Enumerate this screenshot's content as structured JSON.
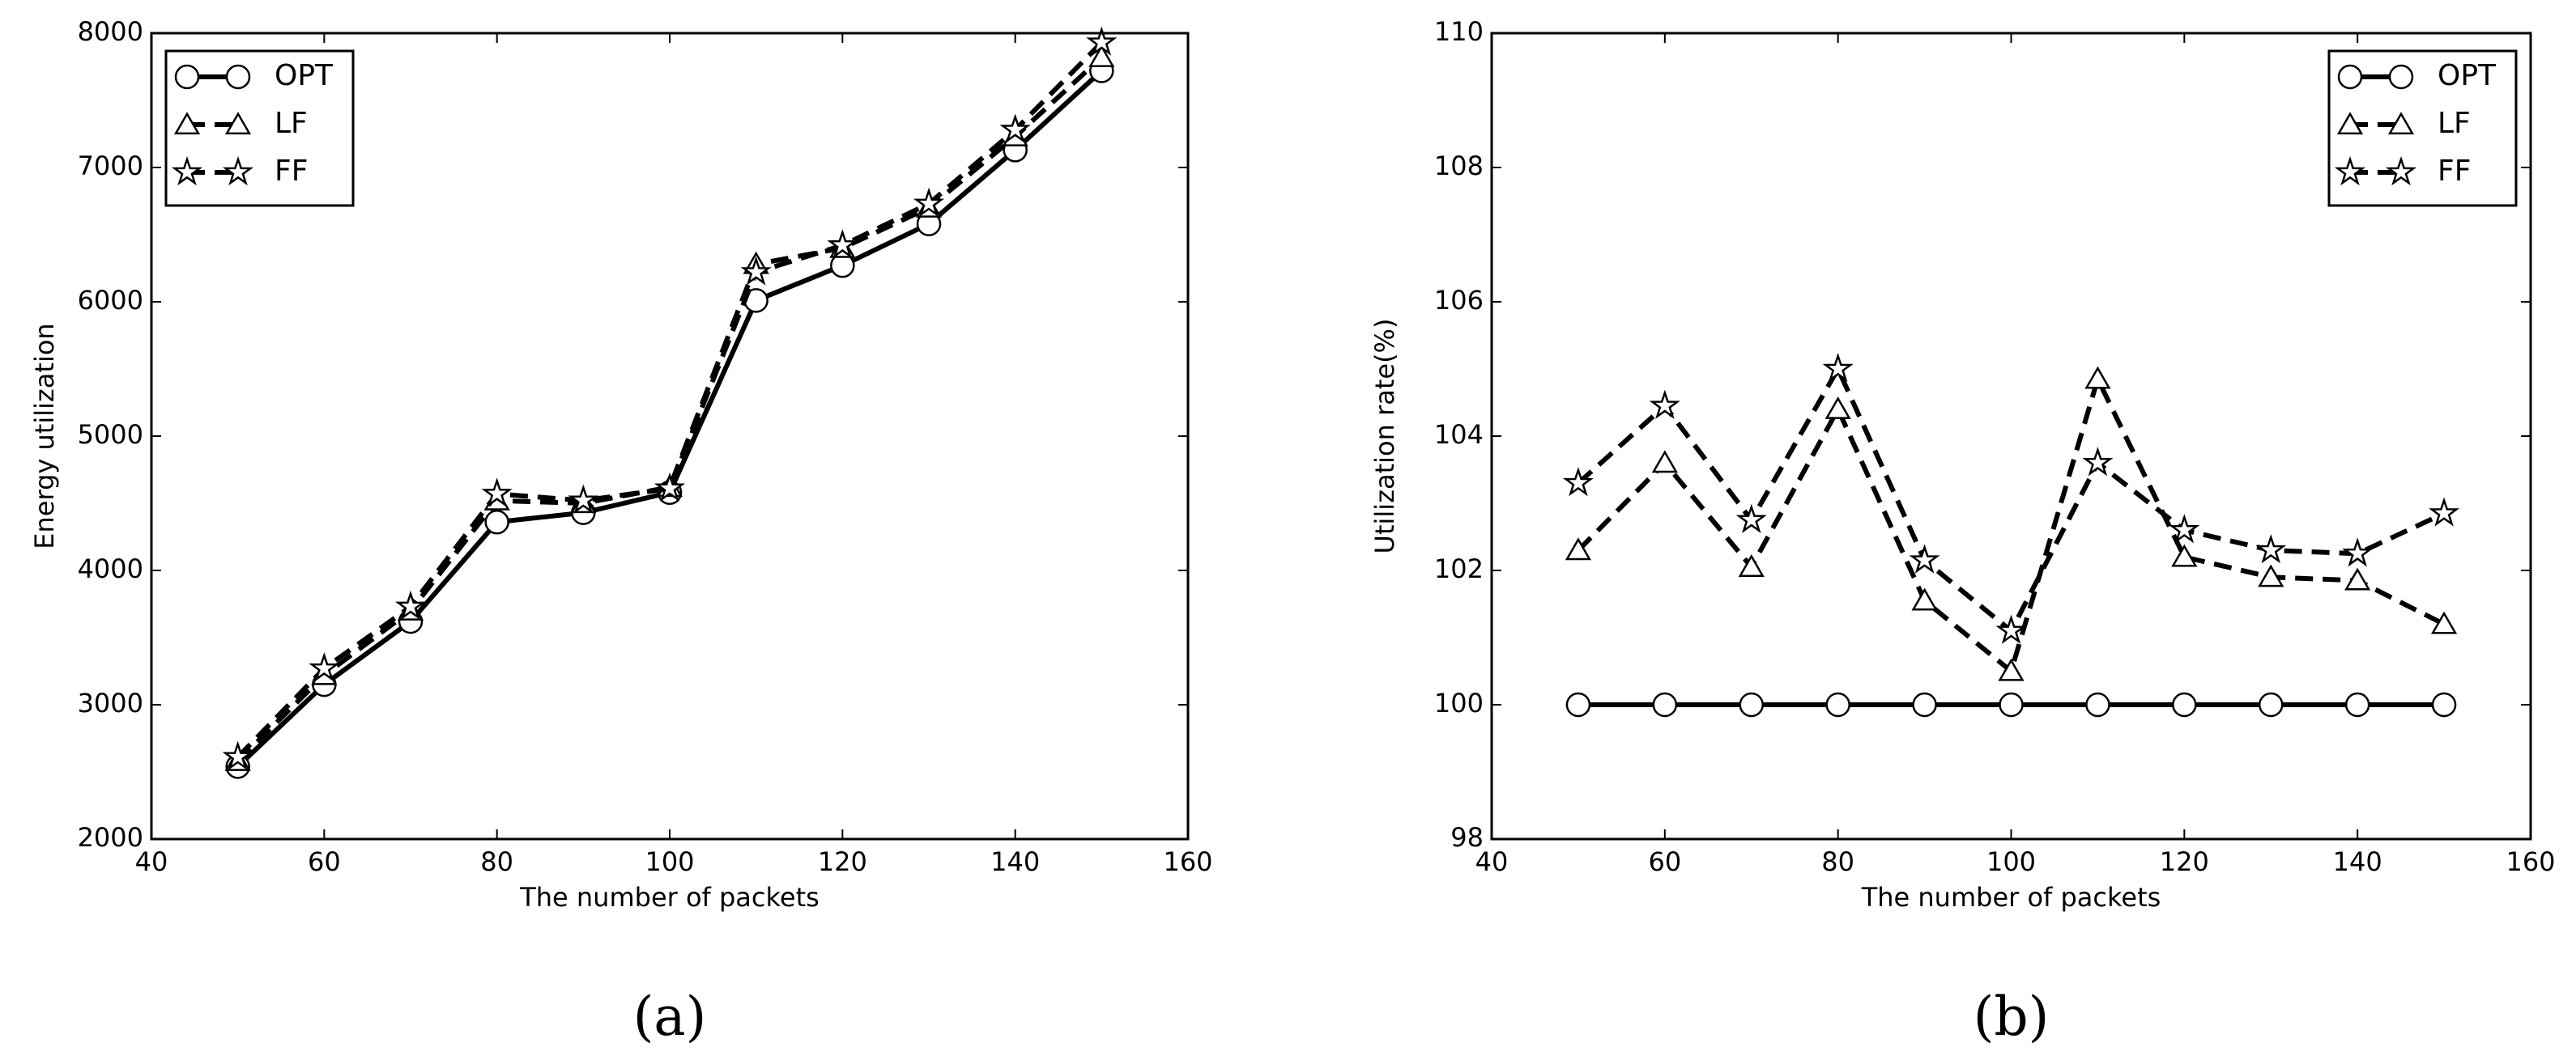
{
  "chart_data": [
    {
      "type": "line",
      "caption": "(a)",
      "xlabel": "The number of packets",
      "ylabel": "Energy utilization",
      "x": [
        50,
        60,
        70,
        80,
        90,
        100,
        110,
        120,
        130,
        140,
        150
      ],
      "xlim": [
        40,
        160
      ],
      "xticks": [
        40,
        60,
        80,
        100,
        120,
        140,
        160
      ],
      "ylim": [
        2000,
        8000
      ],
      "yticks": [
        2000,
        3000,
        4000,
        5000,
        6000,
        7000,
        8000
      ],
      "legend": "upper left",
      "series": [
        {
          "name": "OPT",
          "color": "#000000",
          "marker": "circle",
          "linestyle": "solid",
          "values": [
            2540,
            3150,
            3620,
            4360,
            4430,
            4580,
            6010,
            6270,
            6580,
            7130,
            7720
          ]
        },
        {
          "name": "LF",
          "color": "#000000",
          "marker": "triangle",
          "linestyle": "dashed",
          "values": [
            2580,
            3220,
            3700,
            4520,
            4500,
            4620,
            6280,
            6400,
            6700,
            7230,
            7820
          ]
        },
        {
          "name": "FF",
          "color": "#000000",
          "marker": "star",
          "linestyle": "dashed",
          "values": [
            2610,
            3270,
            3730,
            4570,
            4520,
            4610,
            6220,
            6420,
            6730,
            7280,
            7930
          ]
        }
      ]
    },
    {
      "type": "line",
      "caption": "(b)",
      "xlabel": "The number of packets",
      "ylabel": "Utilization rate(%)",
      "x": [
        50,
        60,
        70,
        80,
        90,
        100,
        110,
        120,
        130,
        140,
        150
      ],
      "xlim": [
        40,
        160
      ],
      "xticks": [
        40,
        60,
        80,
        100,
        120,
        140,
        160
      ],
      "ylim": [
        98,
        110
      ],
      "yticks": [
        98,
        100,
        102,
        104,
        106,
        108,
        110
      ],
      "legend": "upper right",
      "series": [
        {
          "name": "OPT",
          "color": "#000000",
          "marker": "circle",
          "linestyle": "solid",
          "values": [
            100,
            100,
            100,
            100,
            100,
            100,
            100,
            100,
            100,
            100,
            100
          ]
        },
        {
          "name": "LF",
          "color": "#000000",
          "marker": "triangle",
          "linestyle": "dashed",
          "values": [
            102.3,
            103.6,
            102.05,
            104.4,
            101.55,
            100.5,
            104.85,
            102.2,
            101.9,
            101.85,
            101.2
          ]
        },
        {
          "name": "FF",
          "color": "#000000",
          "marker": "star",
          "linestyle": "dashed",
          "values": [
            103.3,
            104.45,
            102.75,
            105.0,
            102.15,
            101.1,
            103.6,
            102.6,
            102.3,
            102.25,
            102.85
          ]
        }
      ]
    }
  ]
}
